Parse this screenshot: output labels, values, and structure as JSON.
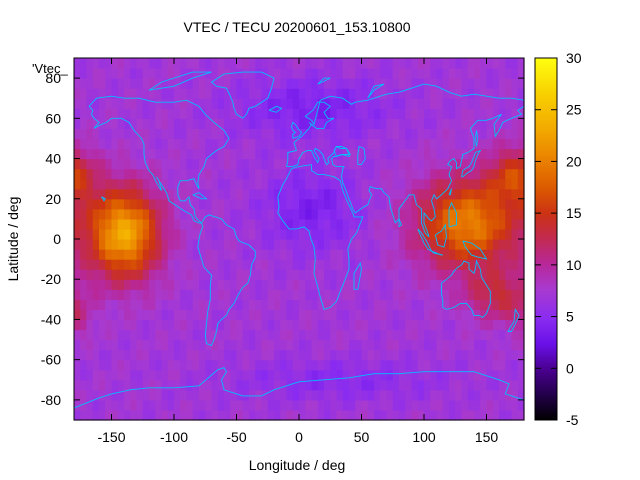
{
  "chart_data": {
    "type": "heatmap",
    "title": "VTEC / TECU 20200601_153.10800",
    "xlabel": "Longitude / deg",
    "ylabel": "Latitude / deg",
    "key_label": "'Vtec_",
    "xlim": [
      -180,
      180
    ],
    "ylim": [
      -90,
      90
    ],
    "x_ticks": [
      -150,
      -100,
      -50,
      0,
      50,
      100,
      150
    ],
    "y_ticks": [
      -80,
      -60,
      -40,
      -20,
      0,
      20,
      40,
      60,
      80
    ],
    "colorbar": {
      "range": [
        -5,
        30
      ],
      "ticks": [
        -5,
        0,
        5,
        10,
        15,
        20,
        25,
        30
      ],
      "palette": "black-purple-red-orange-yellow"
    },
    "grid": false,
    "description_of_field": {
      "background_vtec_approx": 7,
      "hotspots": [
        {
          "region": "central Pacific",
          "lon": -140,
          "lat": 5,
          "vtec_peak": 23
        },
        {
          "region": "western Pacific / east Asia",
          "lon": 130,
          "lat": 10,
          "vtec_peak": 20
        },
        {
          "region": "north Pacific",
          "lon": 175,
          "lat": 30,
          "vtec_peak": 16
        },
        {
          "region": "southwest Pacific",
          "lon": 165,
          "lat": -30,
          "vtec_peak": 13
        }
      ],
      "lows": [
        {
          "region": "Atlantic / Africa",
          "lon": 10,
          "lat": 20,
          "vtec_min": 4
        },
        {
          "region": "Arctic",
          "lon": 0,
          "lat": 65,
          "vtec_min": 4
        },
        {
          "region": "Southern Ocean",
          "lon": 0,
          "lat": -60,
          "vtec_min": 5
        }
      ]
    },
    "overlay": "coastlines",
    "overlay_color": "#00bfff"
  }
}
